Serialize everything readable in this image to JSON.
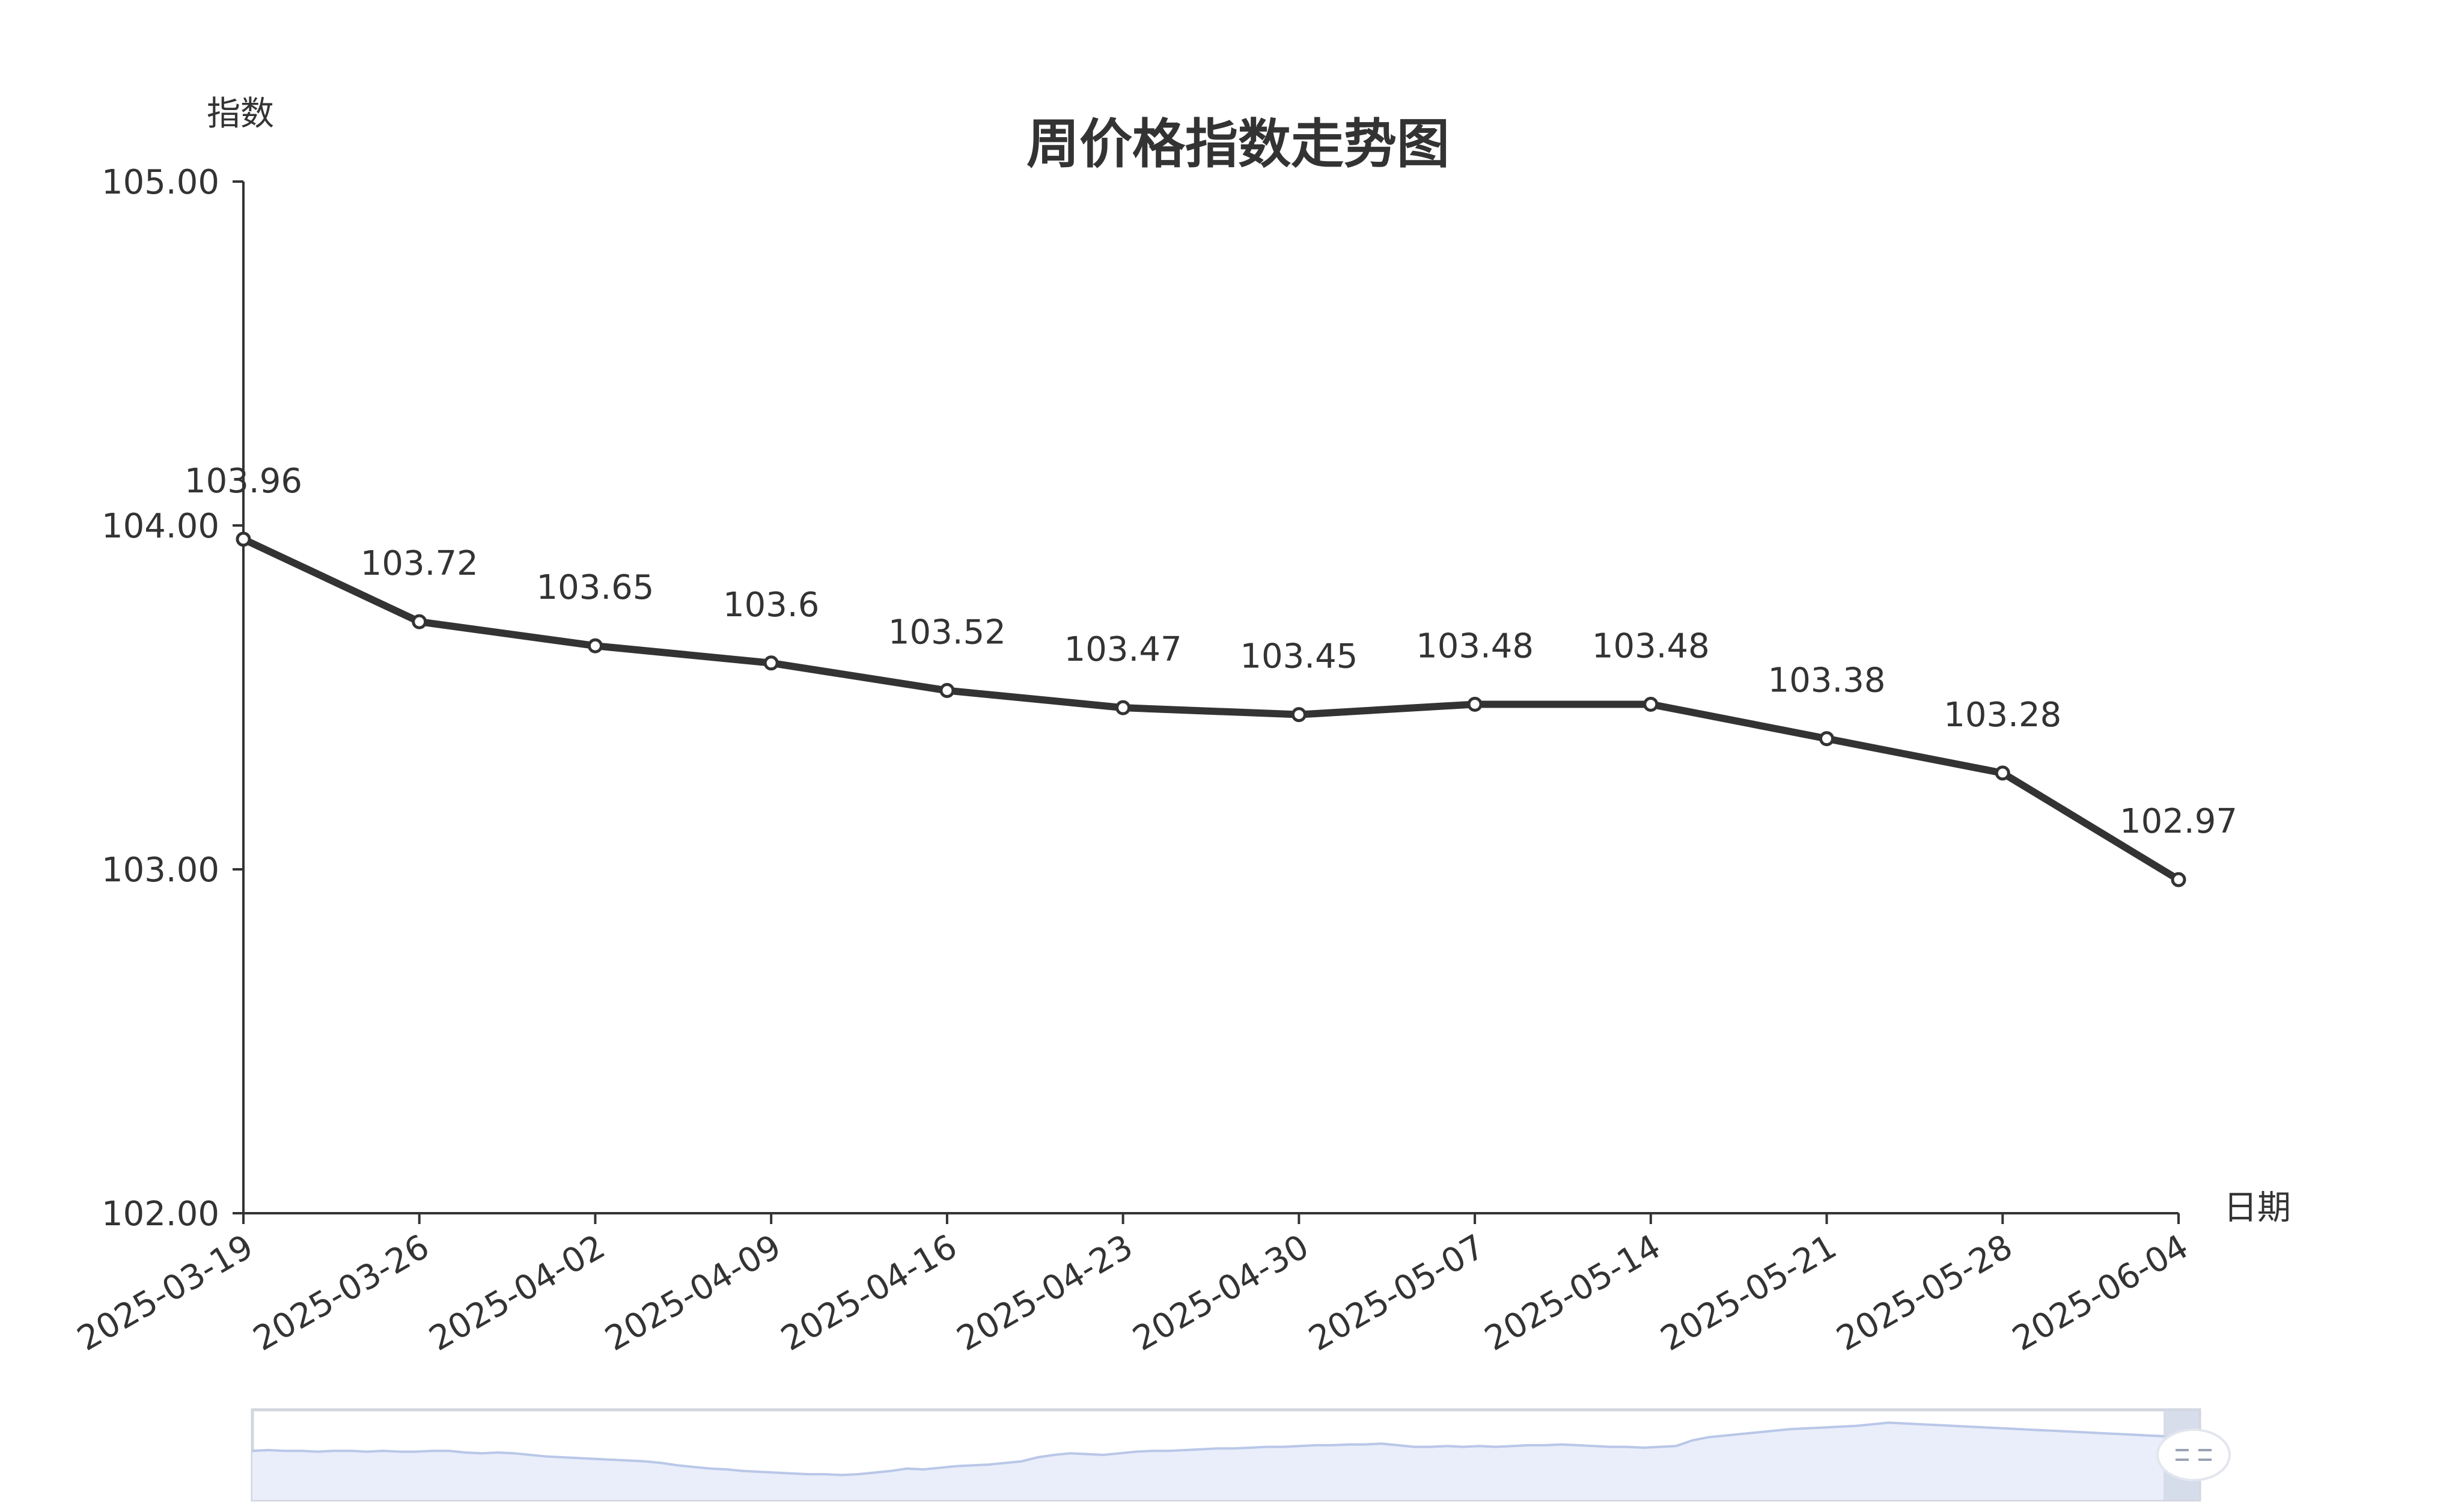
{
  "chart_data": {
    "type": "line",
    "title": "周价格指数走势图",
    "xlabel": "日期",
    "ylabel": "指数",
    "x": [
      "2025-03-19",
      "2025-03-26",
      "2025-04-02",
      "2025-04-09",
      "2025-04-16",
      "2025-04-23",
      "2025-04-30",
      "2025-05-07",
      "2025-05-14",
      "2025-05-21",
      "2025-05-28",
      "2025-06-04"
    ],
    "series": [
      {
        "values": [
          103.96,
          103.72,
          103.65,
          103.6,
          103.52,
          103.47,
          103.45,
          103.48,
          103.48,
          103.38,
          103.28,
          102.97
        ]
      }
    ],
    "data_labels": [
      "103.96",
      "103.72",
      "103.65",
      "103.6",
      "103.52",
      "103.47",
      "103.45",
      "103.48",
      "103.48",
      "103.38",
      "103.28",
      "102.97"
    ],
    "y_ticks": [
      "102.00",
      "103.00",
      "104.00",
      "105.00"
    ],
    "ylim": [
      102,
      105
    ],
    "grid": false,
    "legend": "none",
    "line_color": "#333333",
    "data_zoom": {
      "present": true,
      "range_percent": [
        0,
        100
      ],
      "fill_color": "#e9eefa",
      "line_color": "#b9c7e8",
      "handle_color": "#d3d9e8",
      "preview_values": [
        0.55,
        0.56,
        0.55,
        0.55,
        0.54,
        0.55,
        0.55,
        0.54,
        0.55,
        0.54,
        0.54,
        0.55,
        0.55,
        0.53,
        0.52,
        0.53,
        0.52,
        0.5,
        0.48,
        0.47,
        0.46,
        0.45,
        0.44,
        0.43,
        0.42,
        0.4,
        0.37,
        0.35,
        0.33,
        0.32,
        0.3,
        0.29,
        0.28,
        0.27,
        0.26,
        0.26,
        0.25,
        0.26,
        0.28,
        0.3,
        0.33,
        0.32,
        0.34,
        0.36,
        0.37,
        0.38,
        0.4,
        0.42,
        0.47,
        0.5,
        0.52,
        0.51,
        0.5,
        0.52,
        0.54,
        0.55,
        0.55,
        0.56,
        0.57,
        0.58,
        0.58,
        0.59,
        0.6,
        0.6,
        0.61,
        0.62,
        0.62,
        0.63,
        0.63,
        0.64,
        0.62,
        0.6,
        0.6,
        0.61,
        0.6,
        0.61,
        0.6,
        0.61,
        0.62,
        0.62,
        0.63,
        0.62,
        0.61,
        0.6,
        0.6,
        0.59,
        0.6,
        0.61,
        0.68,
        0.72,
        0.74,
        0.76,
        0.78,
        0.8,
        0.82,
        0.83,
        0.84,
        0.85,
        0.86,
        0.88,
        0.9,
        0.89,
        0.88,
        0.87,
        0.86,
        0.85,
        0.84,
        0.83,
        0.82,
        0.81,
        0.8,
        0.79,
        0.78,
        0.77,
        0.76,
        0.75,
        0.74,
        0.73,
        0.72,
        0.71
      ]
    }
  }
}
